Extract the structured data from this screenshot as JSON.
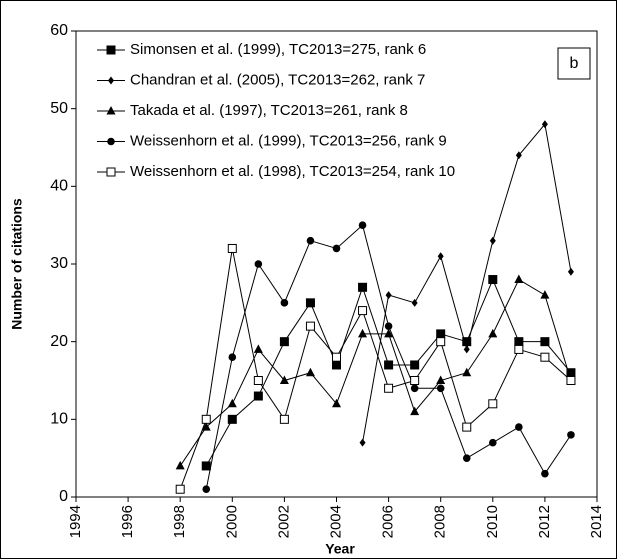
{
  "chart_data": {
    "type": "line",
    "xlabel": "Year",
    "ylabel": "Number of citations",
    "annotation": "b",
    "x": [
      1998,
      1999,
      2000,
      2001,
      2002,
      2003,
      2004,
      2005,
      2006,
      2007,
      2008,
      2009,
      2010,
      2011,
      2012,
      2013
    ],
    "series": [
      {
        "name": "Simonsen et al. (1999), TC2013=275, rank 6",
        "color": "#000000",
        "marker": "square",
        "values": [
          null,
          4,
          10,
          13,
          20,
          25,
          17,
          27,
          17,
          17,
          21,
          20,
          28,
          20,
          20,
          16
        ]
      },
      {
        "name": "Chandran et al. (2005), TC2013=262, rank 7",
        "color": "#000000",
        "marker": "diamond",
        "values": [
          null,
          null,
          null,
          null,
          null,
          null,
          null,
          7,
          26,
          25,
          31,
          19,
          33,
          44,
          48,
          29
        ]
      },
      {
        "name": "Takada et al. (1997), TC2013=261, rank 8",
        "color": "#000000",
        "marker": "triangle",
        "values": [
          4,
          9,
          12,
          19,
          15,
          16,
          12,
          21,
          21,
          11,
          15,
          16,
          21,
          28,
          26,
          15
        ]
      },
      {
        "name": "Weissenhorn et al. (1999), TC2013=256, rank 9",
        "color": "#000000",
        "marker": "circle",
        "values": [
          null,
          1,
          18,
          30,
          25,
          33,
          32,
          35,
          22,
          14,
          14,
          5,
          7,
          9,
          3,
          8
        ]
      },
      {
        "name": "Weissenhorn et al. (1998), TC2013=254, rank 10",
        "color": "#000000",
        "marker": "open-square",
        "values": [
          1,
          10,
          32,
          15,
          10,
          22,
          18,
          24,
          14,
          15,
          20,
          9,
          12,
          19,
          18,
          15
        ]
      }
    ],
    "xlim": [
      1994,
      2014
    ],
    "xticks": [
      1994,
      1996,
      1998,
      2000,
      2002,
      2004,
      2006,
      2008,
      2010,
      2012,
      2014
    ],
    "ylim": [
      0,
      60
    ],
    "yticks": [
      0,
      10,
      20,
      30,
      40,
      50,
      60
    ],
    "grid": false,
    "legend": "upper left"
  }
}
